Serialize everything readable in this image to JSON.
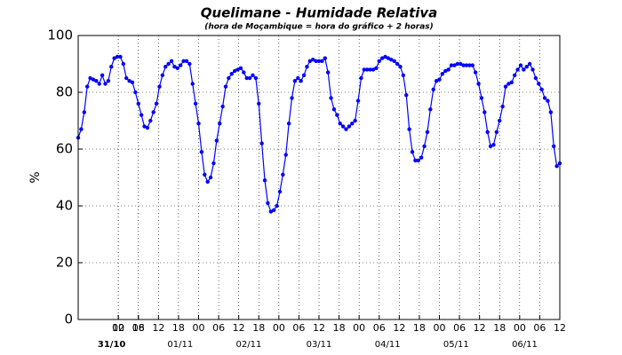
{
  "chart_data": {
    "type": "line",
    "title": "Quelimane - Humidade Relativa",
    "subtitle": "(hora de Moçambique = hora do gráfico + 2 horas)",
    "ylabel": "%",
    "xlim": [
      0,
      144
    ],
    "ylim": [
      0,
      100
    ],
    "yticks": [
      0,
      20,
      40,
      60,
      80,
      100
    ],
    "xticks": [
      12,
      18,
      {
        "value": 12,
        "label": "00"
      },
      {
        "value": 18,
        "label": "06"
      },
      {
        "value": 24,
        "label": "12"
      },
      {
        "value": 30,
        "label": "18"
      },
      {
        "value": 36,
        "label": "00"
      },
      {
        "value": 42,
        "label": "06"
      },
      {
        "value": 48,
        "label": "12"
      },
      {
        "value": 54,
        "label": "18"
      },
      {
        "value": 60,
        "label": "00"
      },
      {
        "value": 66,
        "label": "06"
      },
      {
        "value": 72,
        "label": "12"
      },
      {
        "value": 78,
        "label": "18"
      },
      {
        "value": 84,
        "label": "00"
      },
      {
        "value": 90,
        "label": "06"
      },
      {
        "value": 96,
        "label": "12"
      },
      {
        "value": 102,
        "label": "18"
      },
      {
        "value": 108,
        "label": "00"
      },
      {
        "value": 114,
        "label": "06"
      },
      {
        "value": 120,
        "label": "12"
      },
      {
        "value": 126,
        "label": "18"
      },
      {
        "value": 132,
        "label": "00"
      },
      {
        "value": 138,
        "label": "06"
      },
      {
        "value": 144,
        "label": "12"
      }
    ],
    "date_labels": [
      {
        "value": 10,
        "label": "31/10"
      },
      {
        "value": 30.5,
        "label": "01/11"
      },
      {
        "value": 51,
        "label": "02/11"
      },
      {
        "value": 72,
        "label": "03/11"
      },
      {
        "value": 92.5,
        "label": "04/11"
      },
      {
        "value": 113,
        "label": "05/11"
      },
      {
        "value": 133.5,
        "label": "06/11"
      }
    ],
    "grid": true,
    "x": [
      0,
      0.9,
      1.8,
      2.7,
      3.6,
      4.5,
      5.4,
      6.3,
      7.2,
      8.1,
      9,
      9.9,
      10.8,
      11.7,
      12.6,
      13.5,
      14.4,
      15.3,
      16.2,
      17.1,
      18,
      18.9,
      19.8,
      20.7,
      21.6,
      22.5,
      23.4,
      24.3,
      25.2,
      26.1,
      27,
      27.9,
      28.8,
      29.7,
      30.6,
      31.5,
      32.4,
      33.3,
      34.2,
      35.1,
      36,
      36.9,
      37.8,
      38.7,
      39.6,
      40.5,
      41.4,
      42.3,
      43.2,
      44.1,
      45,
      45.9,
      46.8,
      47.7,
      48.6,
      49.5,
      50.4,
      51.3,
      52.2,
      53.1,
      54,
      54.9,
      55.8,
      56.7,
      57.6,
      58.5,
      59.4,
      60.3,
      61.2,
      62.1,
      63,
      63.9,
      64.8,
      65.7,
      66.6,
      67.5,
      68.4,
      69.3,
      70.2,
      71.1,
      72,
      72.9,
      73.8,
      74.7,
      75.6,
      76.5,
      77.4,
      78.3,
      79.2,
      80.1,
      81,
      81.9,
      82.8,
      83.7,
      84.6,
      85.5,
      86.4,
      87.3,
      88.2,
      89.1,
      90,
      90.9,
      91.8,
      92.7,
      93.6,
      94.5,
      95.4,
      96.3,
      97.2,
      98.1,
      99,
      99.9,
      100.8,
      101.7,
      102.6,
      103.5,
      104.4,
      105.3,
      106.2,
      107.1,
      108,
      108.9,
      109.8,
      110.7,
      111.6,
      112.5,
      113.4,
      114.3,
      115.2,
      116.1,
      117,
      117.9,
      118.8,
      119.7,
      120.6,
      121.5,
      122.4,
      123.3,
      124.2,
      125.1,
      126,
      126.9,
      127.8,
      128.7,
      129.6,
      130.5,
      131.4,
      132.3,
      133.2,
      134.1,
      135,
      135.9,
      136.8,
      137.7,
      138.6,
      139.5,
      140.4,
      141.3,
      142.2,
      143.1,
      144
    ],
    "series": [
      {
        "color": "#0000ff",
        "values": [
          64,
          67,
          73,
          82,
          85,
          84.5,
          84,
          83,
          86,
          83,
          84,
          89,
          92,
          92.5,
          92.5,
          90,
          85,
          84,
          83.5,
          80,
          76,
          72,
          68,
          67.5,
          70,
          73,
          76,
          82,
          86,
          89,
          90,
          91,
          89,
          88.5,
          89.5,
          91,
          91,
          90,
          83,
          76,
          69,
          59,
          51,
          48.5,
          50,
          55,
          63,
          69,
          75,
          82,
          85,
          86.5,
          87.5,
          88,
          88.5,
          87,
          85,
          85,
          86,
          85,
          76,
          62,
          49,
          41,
          38,
          38.5,
          40,
          45,
          51,
          58,
          69,
          78,
          84,
          85,
          84,
          86,
          89,
          91,
          91.5,
          91,
          91,
          91,
          92,
          87,
          78,
          74,
          72,
          69,
          68,
          67,
          68,
          69,
          70,
          77,
          85,
          88,
          88,
          88,
          88,
          88.5,
          91,
          92,
          92.5,
          92,
          91.5,
          91,
          90,
          89,
          86,
          79,
          67,
          59,
          56,
          56,
          57,
          61,
          66,
          74,
          81,
          84,
          84.5,
          86.5,
          87.5,
          88,
          89.5,
          89.5,
          90,
          90,
          89.5,
          89.5,
          89.5,
          89.5,
          87,
          83,
          78,
          73,
          66,
          61,
          61.5,
          66,
          70,
          75,
          82,
          83,
          83.5,
          86,
          88,
          89.5,
          88,
          89,
          90,
          88,
          85,
          83,
          81,
          78,
          77,
          73,
          61,
          54,
          55
        ]
      }
    ]
  }
}
